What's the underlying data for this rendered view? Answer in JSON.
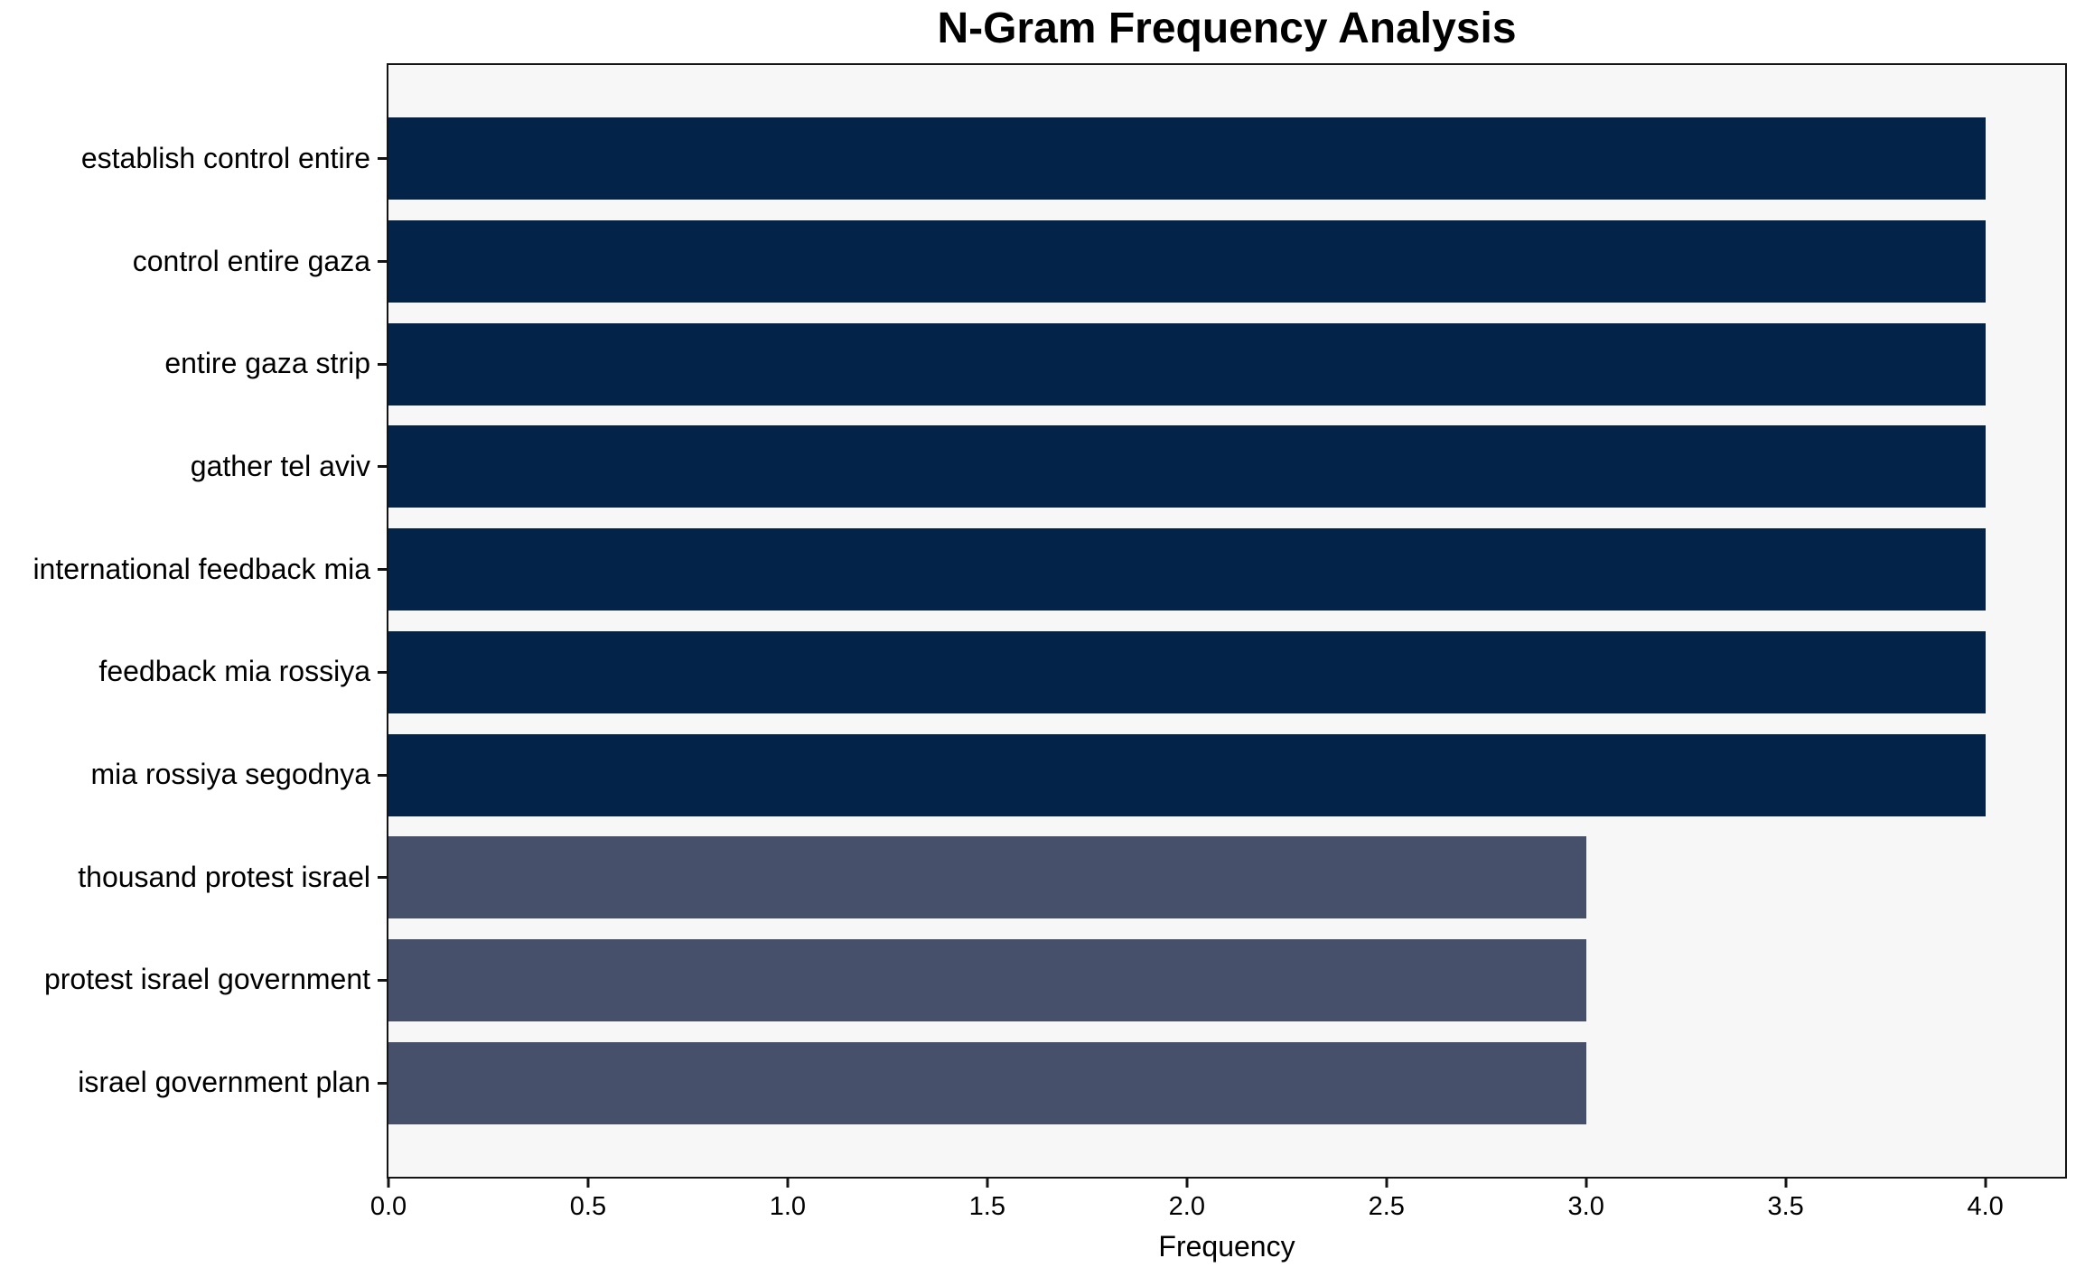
{
  "chart_data": {
    "type": "bar",
    "orientation": "horizontal",
    "title": "N-Gram Frequency Analysis",
    "xlabel": "Frequency",
    "ylabel": "",
    "categories": [
      "establish control entire",
      "control entire gaza",
      "entire gaza strip",
      "gather tel aviv",
      "international feedback mia",
      "feedback mia rossiya",
      "mia rossiya segodnya",
      "thousand protest israel",
      "protest israel government",
      "israel government plan"
    ],
    "values": [
      4,
      4,
      4,
      4,
      4,
      4,
      4,
      3,
      3,
      3
    ],
    "bar_colors": [
      "#032349",
      "#032349",
      "#032349",
      "#032349",
      "#032349",
      "#032349",
      "#032349",
      "#46506A",
      "#46506A",
      "#46506A"
    ],
    "xlim": [
      0,
      4.2
    ],
    "x_ticks": [
      0.0,
      0.5,
      1.0,
      1.5,
      2.0,
      2.5,
      3.0,
      3.5,
      4.0
    ],
    "x_tick_labels": [
      "0.0",
      "0.5",
      "1.0",
      "1.5",
      "2.0",
      "2.5",
      "3.0",
      "3.5",
      "4.0"
    ],
    "grid": false,
    "legend": false,
    "plot_background": "#f7f7f7",
    "page_background": "#ffffff",
    "frame_color": "#141414",
    "text_color": "#000000"
  }
}
